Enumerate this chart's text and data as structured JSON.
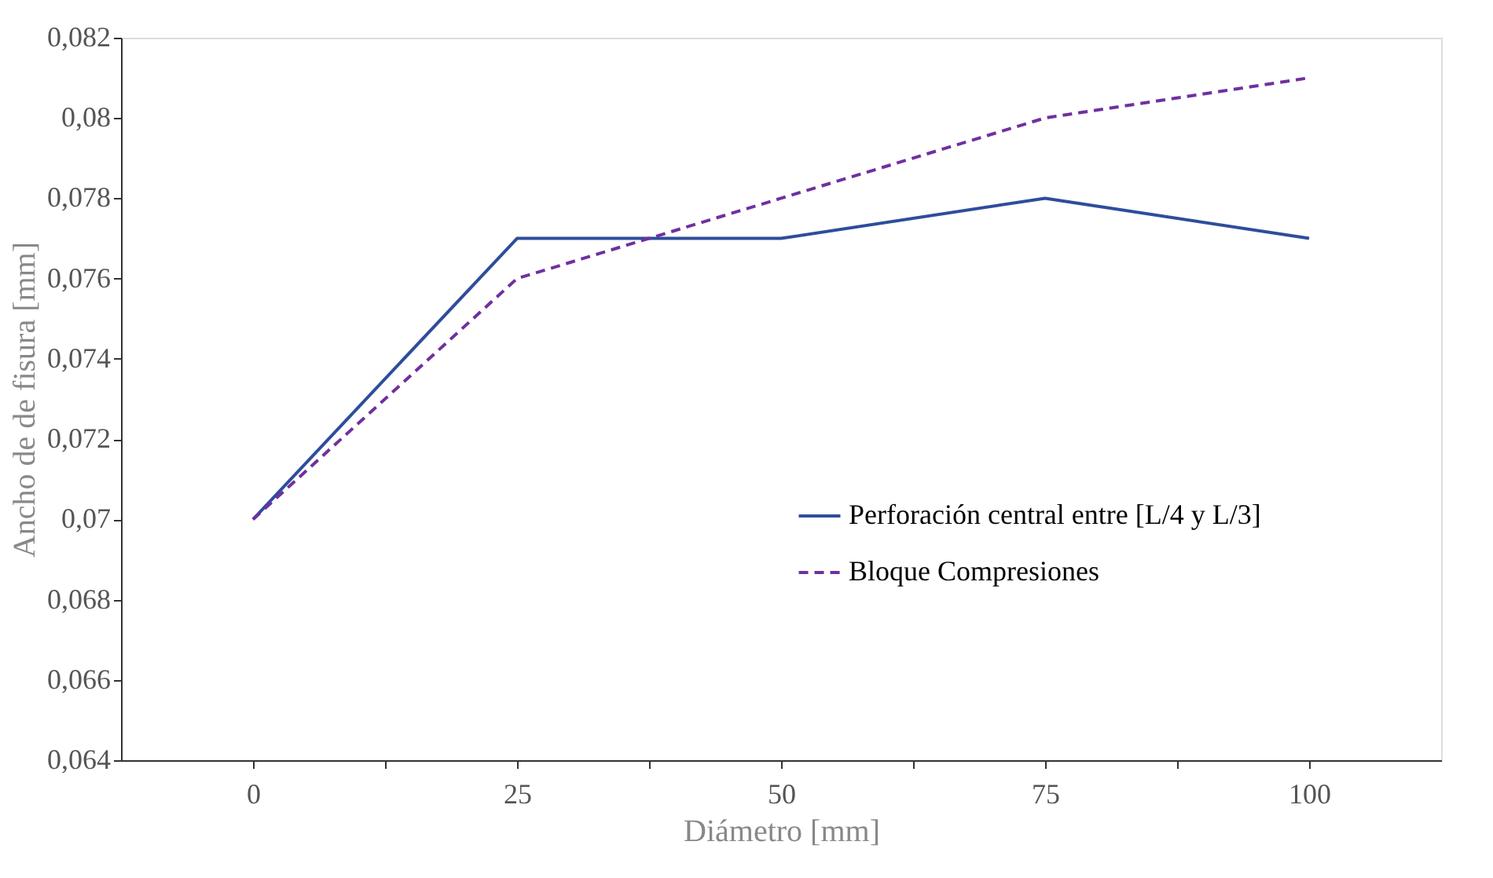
{
  "chart_data": {
    "type": "line",
    "xlabel": "Diámetro [mm]",
    "ylabel": "Ancho de de fisura [mm]",
    "x": [
      0,
      25,
      50,
      75,
      100
    ],
    "series": [
      {
        "name": "Perforación central entre [L/4 y L/3]",
        "color": "#2e4d9b",
        "line_style": "solid",
        "values": [
          0.07,
          0.077,
          0.077,
          0.078,
          0.077
        ]
      },
      {
        "name": "Bloque Compresiones",
        "color": "#7030a0",
        "line_style": "dashed",
        "values": [
          0.07,
          0.076,
          0.078,
          0.08,
          0.081
        ]
      }
    ],
    "xlim": [
      -12.5,
      112.5
    ],
    "xticks": [
      0,
      {
        "value": 12.5,
        "label": null
      },
      25,
      {
        "value": 37.5,
        "label": null
      },
      50,
      {
        "value": 62.5,
        "label": null
      },
      75,
      {
        "value": 87.5,
        "label": null
      },
      100
    ],
    "ylim": [
      0.064,
      0.082
    ],
    "yticks": [
      {
        "value": 0.064,
        "label": "0,064"
      },
      {
        "value": 0.066,
        "label": "0,066"
      },
      {
        "value": 0.068,
        "label": "0,068"
      },
      {
        "value": 0.07,
        "label": "0,07"
      },
      {
        "value": 0.072,
        "label": "0,072"
      },
      {
        "value": 0.074,
        "label": "0,074"
      },
      {
        "value": 0.076,
        "label": "0,076"
      },
      {
        "value": 0.078,
        "label": "0,078"
      },
      {
        "value": 0.08,
        "label": "0,08"
      },
      {
        "value": 0.082,
        "label": "0,082"
      }
    ],
    "grid": false,
    "legend": "center right",
    "marker": "none"
  }
}
